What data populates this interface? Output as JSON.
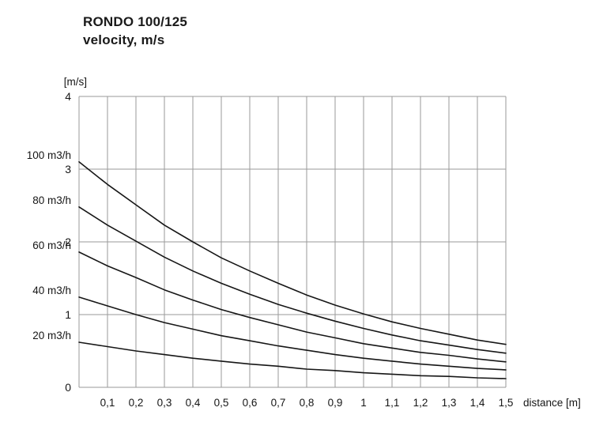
{
  "header": {
    "title_line1": "RONDO 100/125",
    "title_line2": "velocity, m/s"
  },
  "chart_data": {
    "type": "line",
    "title": "RONDO 100/125 velocity, m/s",
    "y_axis_unit_label": "[m/s]",
    "xlabel": "distance [m]",
    "xlim": [
      0,
      1.5
    ],
    "ylim": [
      0,
      4
    ],
    "grid": true,
    "legend_position": "left-margin",
    "x": [
      0,
      0.1,
      0.2,
      0.3,
      0.4,
      0.5,
      0.6,
      0.7,
      0.8,
      0.9,
      1.0,
      1.1,
      1.2,
      1.3,
      1.4,
      1.5
    ],
    "xtick_values": [
      0.1,
      0.2,
      0.3,
      0.4,
      0.5,
      0.6,
      0.7,
      0.8,
      0.9,
      1.0,
      1.1,
      1.2,
      1.3,
      1.4,
      1.5
    ],
    "xtick_labels": [
      "0,1",
      "0,2",
      "0,3",
      "0,4",
      "0,5",
      "0,6",
      "0,7",
      "0,8",
      "0,9",
      "1",
      "1,1",
      "1,2",
      "1,3",
      "1,4",
      "1,5"
    ],
    "ytick_values": [
      0,
      1,
      2,
      3,
      4
    ],
    "ytick_labels": [
      "0",
      "1",
      "2",
      "3",
      "4"
    ],
    "series": [
      {
        "name": "100 m3/h",
        "values": [
          3.1,
          2.79,
          2.51,
          2.23,
          2.0,
          1.78,
          1.6,
          1.43,
          1.27,
          1.13,
          1.01,
          0.9,
          0.81,
          0.73,
          0.65,
          0.59
        ]
      },
      {
        "name": "80 m3/h",
        "values": [
          2.48,
          2.23,
          2.01,
          1.79,
          1.6,
          1.43,
          1.28,
          1.14,
          1.02,
          0.91,
          0.81,
          0.72,
          0.64,
          0.58,
          0.52,
          0.47
        ]
      },
      {
        "name": "60 m3/h",
        "values": [
          1.86,
          1.67,
          1.51,
          1.34,
          1.2,
          1.07,
          0.96,
          0.86,
          0.76,
          0.68,
          0.6,
          0.54,
          0.48,
          0.44,
          0.39,
          0.35
        ]
      },
      {
        "name": "40 m3/h",
        "values": [
          1.24,
          1.12,
          1.0,
          0.89,
          0.8,
          0.71,
          0.64,
          0.57,
          0.51,
          0.45,
          0.4,
          0.36,
          0.32,
          0.29,
          0.26,
          0.24
        ]
      },
      {
        "name": "20 m3/h",
        "values": [
          0.62,
          0.56,
          0.5,
          0.45,
          0.4,
          0.36,
          0.32,
          0.29,
          0.25,
          0.23,
          0.2,
          0.18,
          0.16,
          0.15,
          0.13,
          0.12
        ]
      }
    ],
    "colors": {
      "curve": "#161616",
      "grid": "#9a9a9a",
      "text": "#161616"
    }
  }
}
